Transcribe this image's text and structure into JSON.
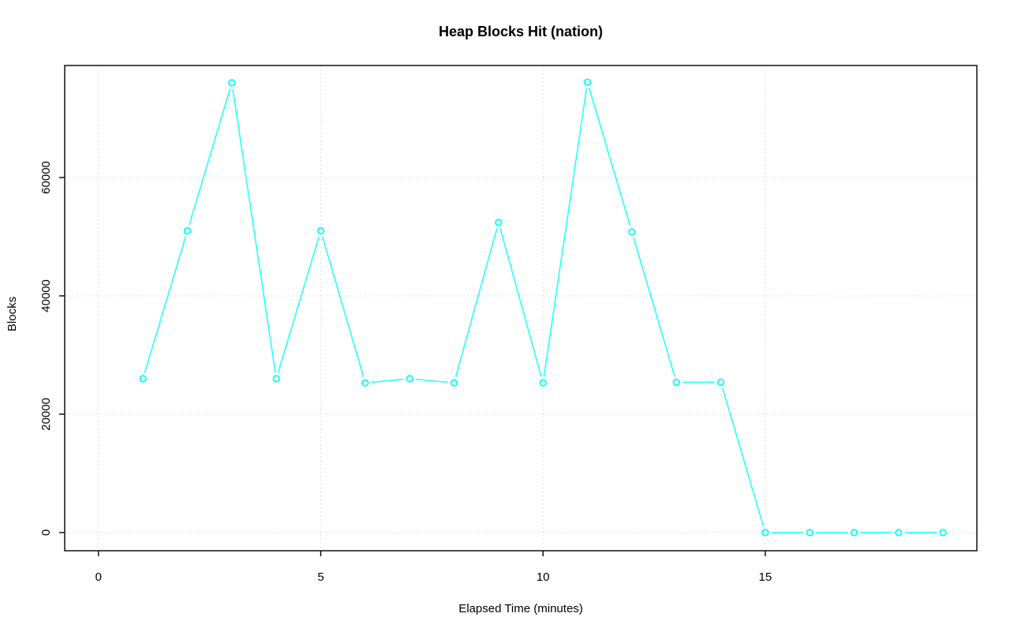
{
  "page": {
    "background_color": "#ffffff"
  },
  "chart_data": {
    "type": "line",
    "title": "Heap Blocks Hit (nation)",
    "xlabel": "Elapsed Time (minutes)",
    "ylabel": "Blocks",
    "series": [
      {
        "name": "heap-blocks-hit",
        "x": [
          1,
          2,
          3,
          4,
          5,
          6,
          7,
          8,
          9,
          10,
          11,
          12,
          13,
          14,
          15,
          16,
          17,
          18,
          19
        ],
        "y": [
          26000,
          51000,
          76000,
          26000,
          51000,
          25300,
          26000,
          25300,
          52400,
          25300,
          76100,
          50800,
          25400,
          25400,
          0,
          0,
          0,
          0,
          0
        ]
      }
    ],
    "xticks": [
      0,
      5,
      10,
      15
    ],
    "yticks": [
      0,
      20000,
      40000,
      60000
    ],
    "xlim": [
      -0.76,
      19.76
    ],
    "ylim": [
      -3070,
      78930
    ],
    "grid": true,
    "grid_style": "dotted",
    "legend": "none",
    "marker": "open-circle",
    "line_color": "#00ffff",
    "marker_fill": "#ffffff",
    "grid_color": "#d3d3d3",
    "axis_color": "#000000",
    "text_color": "#000000"
  }
}
